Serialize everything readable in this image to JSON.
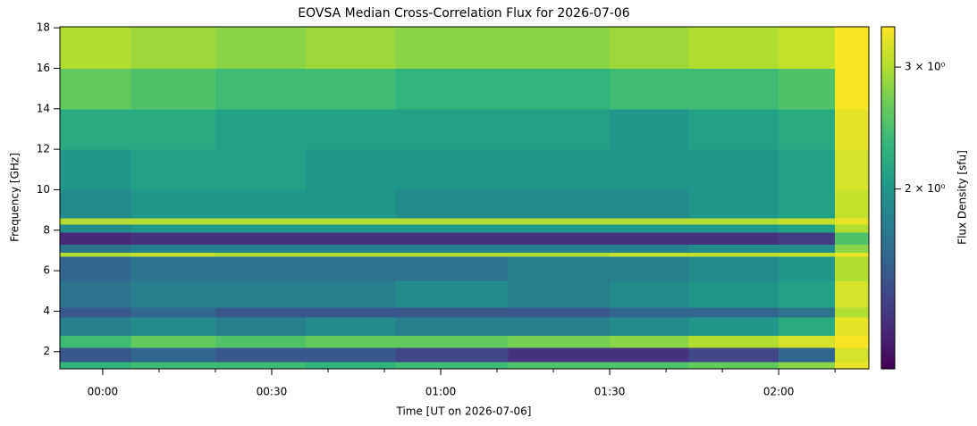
{
  "chart_data": {
    "type": "heatmap",
    "title": "EOVSA Median Cross-Correlation Flux for 2026-07-06",
    "x_label": "Time [UT on 2026-07-06]",
    "y_label": "Frequency [GHz]",
    "colorbar_label": "Flux Density [sfu]",
    "colormap": "viridis",
    "color_scale": "log",
    "xlim": [
      -7.6,
      136
    ],
    "xticks": [
      {
        "value": 0,
        "label": "00:00"
      },
      {
        "value": 30,
        "label": "00:30"
      },
      {
        "value": 60,
        "label": "01:00"
      },
      {
        "value": 90,
        "label": "01:30"
      },
      {
        "value": 120,
        "label": "02:00"
      }
    ],
    "xminorticks": [
      10,
      20,
      40,
      50,
      70,
      80,
      100,
      110,
      130
    ],
    "ylim": [
      1.15,
      18.05
    ],
    "yticks": [
      2,
      4,
      6,
      8,
      10,
      12,
      14,
      16,
      18
    ],
    "clim": [
      1.1,
      3.43
    ],
    "cticks": [
      {
        "value": 2,
        "label": "2 × 10⁰"
      },
      {
        "value": 3,
        "label": "3 × 10⁰"
      }
    ],
    "x_edges": [
      -7.6,
      5,
      20,
      36,
      52,
      72,
      90,
      104,
      120,
      130,
      136
    ],
    "y_edges": [
      1.15,
      1.5,
      2.2,
      2.8,
      3.7,
      4.2,
      5.5,
      6.7,
      6.9,
      7.3,
      7.9,
      8.3,
      8.6,
      10,
      12,
      14,
      16,
      18.05
    ],
    "z": [
      [
        2.3,
        2.4,
        2.4,
        2.3,
        2.4,
        2.5,
        2.5,
        2.6,
        2.8,
        3.3
      ],
      [
        1.5,
        1.6,
        1.5,
        1.5,
        1.4,
        1.3,
        1.3,
        1.4,
        1.6,
        3.2
      ],
      [
        2.4,
        2.6,
        2.5,
        2.6,
        2.6,
        2.7,
        2.8,
        3.0,
        3.2,
        3.4
      ],
      [
        1.8,
        1.9,
        1.8,
        1.9,
        1.8,
        1.8,
        1.9,
        2.0,
        2.2,
        3.3
      ],
      [
        1.5,
        1.6,
        1.5,
        1.5,
        1.5,
        1.5,
        1.6,
        1.6,
        1.7,
        3.0
      ],
      [
        1.7,
        1.8,
        1.8,
        1.8,
        1.9,
        1.8,
        1.9,
        2.0,
        2.1,
        3.2
      ],
      [
        1.6,
        1.7,
        1.7,
        1.7,
        1.7,
        1.8,
        1.8,
        1.9,
        2.0,
        3.0
      ],
      [
        3.0,
        3.1,
        3.0,
        3.0,
        3.0,
        3.0,
        3.1,
        3.1,
        3.1,
        3.3
      ],
      [
        1.7,
        1.8,
        1.8,
        1.8,
        1.8,
        1.8,
        1.8,
        1.9,
        1.9,
        2.8
      ],
      [
        1.25,
        1.3,
        1.3,
        1.3,
        1.3,
        1.3,
        1.3,
        1.3,
        1.35,
        2.5
      ],
      [
        1.9,
        2.0,
        2.0,
        2.0,
        2.0,
        2.0,
        2.0,
        2.0,
        2.1,
        3.0
      ],
      [
        3.0,
        3.0,
        3.0,
        3.0,
        3.0,
        3.0,
        3.0,
        3.0,
        3.1,
        3.3
      ],
      [
        1.9,
        2.0,
        2.0,
        2.0,
        1.9,
        1.9,
        1.9,
        2.0,
        2.1,
        3.1
      ],
      [
        2.0,
        2.1,
        2.1,
        2.0,
        2.0,
        2.0,
        2.0,
        2.0,
        2.1,
        3.2
      ],
      [
        2.2,
        2.2,
        2.1,
        2.1,
        2.1,
        2.1,
        2.0,
        2.1,
        2.2,
        3.3
      ],
      [
        2.6,
        2.5,
        2.4,
        2.4,
        2.3,
        2.3,
        2.4,
        2.4,
        2.5,
        3.4
      ],
      [
        3.0,
        2.9,
        2.8,
        2.9,
        2.8,
        2.8,
        2.9,
        3.0,
        3.1,
        3.4
      ]
    ]
  }
}
